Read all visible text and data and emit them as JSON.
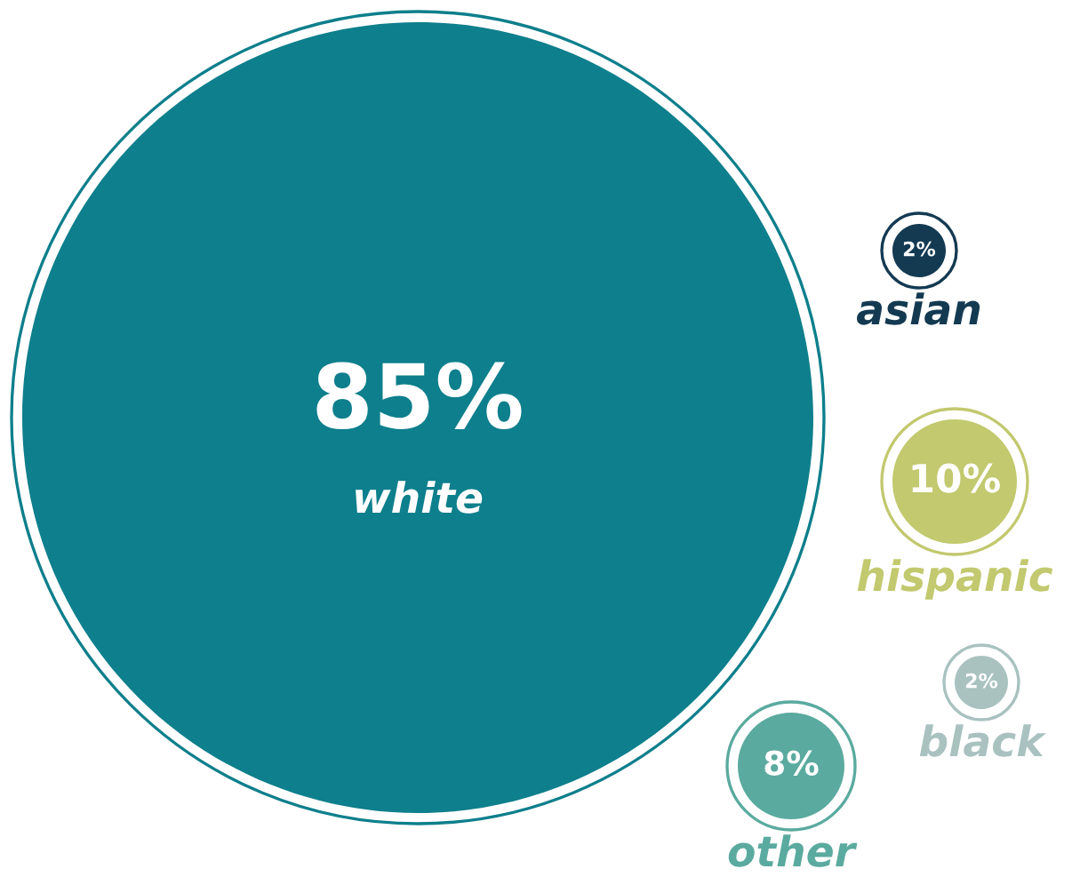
{
  "chart_data": {
    "type": "other",
    "categories": [
      "white",
      "asian",
      "hispanic",
      "black",
      "other"
    ],
    "values": [
      85,
      2,
      10,
      2,
      8
    ],
    "value_labels": [
      "85%",
      "2%",
      "10%",
      "2%",
      "8%"
    ],
    "colors": [
      "#0e7f8c",
      "#143a52",
      "#c2c96e",
      "#a9c2c0",
      "#5aaa9f"
    ]
  }
}
